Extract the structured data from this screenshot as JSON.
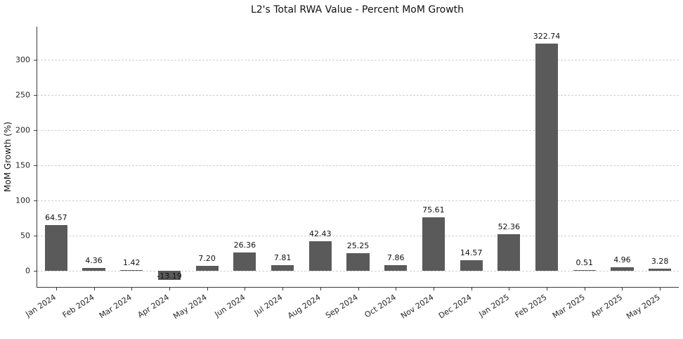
{
  "chart_data": {
    "type": "bar",
    "title": "L2's Total RWA Value - Percent MoM Growth",
    "xlabel": "",
    "ylabel": "MoM Growth (%)",
    "categories": [
      "Jan 2024",
      "Feb 2024",
      "Mar 2024",
      "Apr 2024",
      "May 2024",
      "Jun 2024",
      "Jul 2024",
      "Aug 2024",
      "Sep 2024",
      "Oct 2024",
      "Nov 2024",
      "Dec 2024",
      "Jan 2025",
      "Feb 2025",
      "Mar 2025",
      "Apr 2025",
      "May 2025"
    ],
    "values": [
      64.57,
      4.36,
      1.42,
      -13.19,
      7.2,
      26.36,
      7.81,
      42.43,
      25.25,
      7.86,
      75.61,
      14.57,
      52.36,
      322.74,
      0.51,
      4.96,
      3.28
    ],
    "yticks": [
      0,
      50,
      100,
      150,
      200,
      250,
      300
    ],
    "ylim": [
      -23,
      347
    ],
    "grid": "horizontal-dashed",
    "legend": "none",
    "bar_color": "#5a5a5a",
    "gridline_color": "#d0d0d0",
    "label_decimals": 2
  }
}
